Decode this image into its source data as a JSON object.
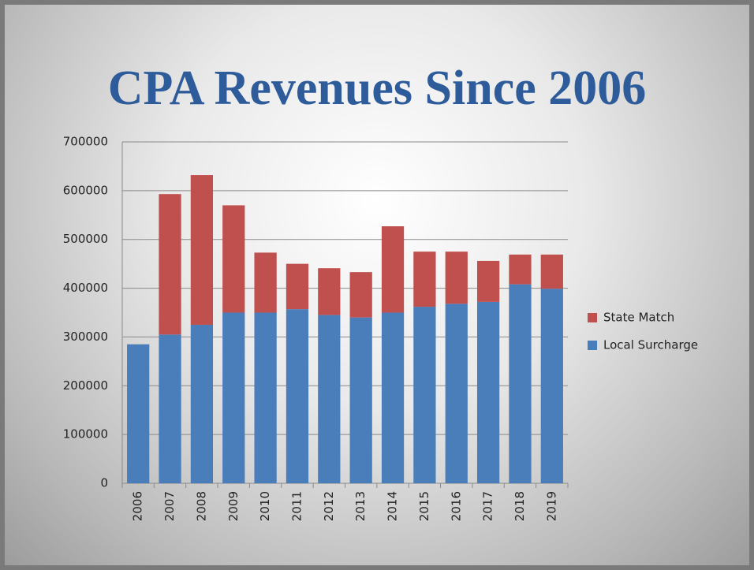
{
  "chart_data": {
    "type": "stacked_bar",
    "title": "CPA Revenues Since 2006",
    "categories": [
      "2006",
      "2007",
      "2008",
      "2009",
      "2010",
      "2011",
      "2012",
      "2013",
      "2014",
      "2015",
      "2016",
      "2017",
      "2018",
      "2019"
    ],
    "series": [
      {
        "name": "Local Surcharge",
        "color": "#4a7ebb",
        "values": [
          285000,
          305000,
          325000,
          350000,
          350000,
          357000,
          345000,
          340000,
          350000,
          362000,
          368000,
          372000,
          408000,
          399000
        ]
      },
      {
        "name": "State Match",
        "color": "#c0504d",
        "values": [
          null,
          288000,
          307000,
          220000,
          123000,
          93000,
          96000,
          93000,
          177000,
          113000,
          107000,
          84000,
          61000,
          70000
        ]
      }
    ],
    "ylim": [
      0,
      700000
    ],
    "yticks": [
      0,
      100000,
      200000,
      300000,
      400000,
      500000,
      600000,
      700000
    ],
    "grid": true,
    "legend": "right"
  }
}
